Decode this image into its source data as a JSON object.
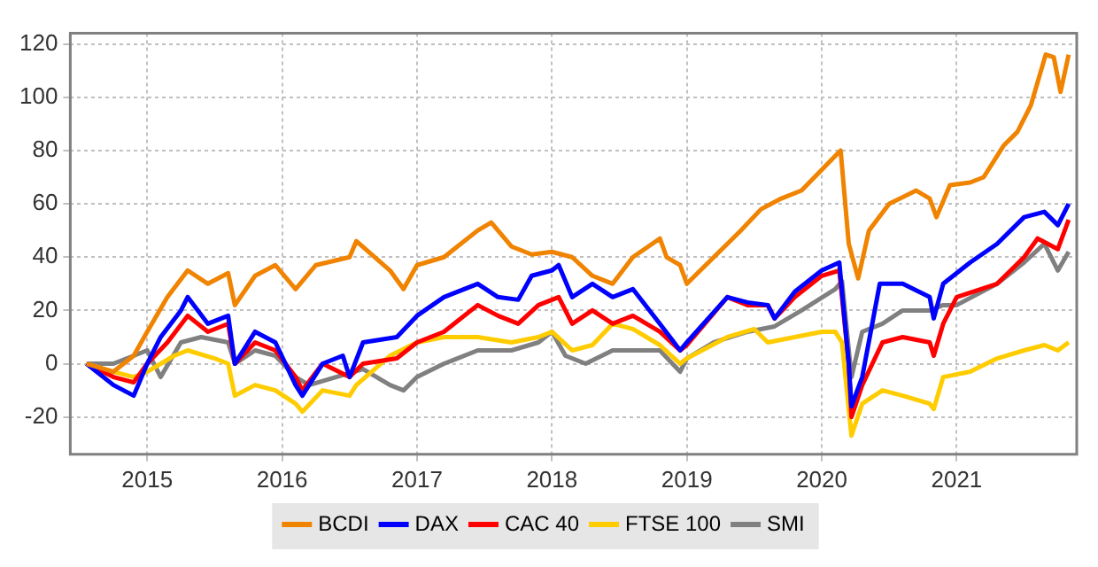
{
  "chart_data": {
    "type": "line",
    "xlim": [
      2014.43,
      2021.89
    ],
    "xticks": [
      2015,
      2016,
      2017,
      2018,
      2019,
      2020,
      2021
    ],
    "ylim": [
      -34,
      124
    ],
    "yticks": [
      -20,
      0,
      20,
      40,
      60,
      80,
      100,
      120
    ],
    "grid": true,
    "legend": "bottom",
    "marker": "none",
    "line_style": "solid",
    "series": [
      {
        "name": "BCDI",
        "color": "#f08300",
        "x": [
          2014.55,
          2014.75,
          2014.9,
          2015.0,
          2015.15,
          2015.3,
          2015.45,
          2015.6,
          2015.65,
          2015.8,
          2015.95,
          2016.1,
          2016.25,
          2016.5,
          2016.55,
          2016.8,
          2016.9,
          2017.0,
          2017.2,
          2017.45,
          2017.55,
          2017.7,
          2017.85,
          2018.0,
          2018.15,
          2018.3,
          2018.45,
          2018.6,
          2018.8,
          2018.85,
          2018.95,
          2019.0,
          2019.2,
          2019.4,
          2019.55,
          2019.7,
          2019.85,
          2020.1,
          2020.14,
          2020.2,
          2020.27,
          2020.35,
          2020.5,
          2020.7,
          2020.8,
          2020.85,
          2020.95,
          2021.1,
          2021.2,
          2021.35,
          2021.45,
          2021.55,
          2021.66,
          2021.72,
          2021.77,
          2021.83
        ],
        "values": [
          0,
          -3,
          3,
          12,
          25,
          35,
          30,
          34,
          22,
          33,
          37,
          28,
          37,
          40,
          46,
          35,
          28,
          37,
          40,
          50,
          53,
          44,
          41,
          42,
          40,
          33,
          30,
          40,
          47,
          40,
          37,
          30,
          40,
          50,
          58,
          62,
          65,
          78,
          80,
          45,
          32,
          50,
          60,
          65,
          62,
          55,
          67,
          68,
          70,
          82,
          87,
          97,
          116,
          115,
          102,
          116
        ]
      },
      {
        "name": "DAX",
        "color": "#0000ff",
        "x": [
          2014.55,
          2014.75,
          2014.9,
          2015.0,
          2015.1,
          2015.25,
          2015.3,
          2015.45,
          2015.6,
          2015.65,
          2015.8,
          2015.95,
          2016.1,
          2016.15,
          2016.3,
          2016.45,
          2016.5,
          2016.6,
          2016.85,
          2017.0,
          2017.2,
          2017.45,
          2017.6,
          2017.75,
          2017.85,
          2018.0,
          2018.05,
          2018.15,
          2018.3,
          2018.45,
          2018.6,
          2018.8,
          2018.95,
          2019.0,
          2019.3,
          2019.45,
          2019.6,
          2019.65,
          2019.8,
          2020.0,
          2020.13,
          2020.2,
          2020.22,
          2020.3,
          2020.43,
          2020.6,
          2020.8,
          2020.83,
          2020.9,
          2021.1,
          2021.3,
          2021.5,
          2021.65,
          2021.75,
          2021.83
        ],
        "values": [
          0,
          -8,
          -12,
          0,
          10,
          20,
          25,
          15,
          18,
          0,
          12,
          8,
          -8,
          -12,
          0,
          3,
          -5,
          8,
          10,
          18,
          25,
          30,
          25,
          24,
          33,
          35,
          37,
          25,
          30,
          25,
          28,
          15,
          5,
          8,
          25,
          23,
          22,
          17,
          27,
          35,
          38,
          0,
          -16,
          -5,
          30,
          30,
          25,
          17,
          30,
          38,
          45,
          55,
          57,
          52,
          60
        ]
      },
      {
        "name": "CAC 40",
        "color": "#ff0000",
        "x": [
          2014.55,
          2014.75,
          2014.9,
          2015.0,
          2015.15,
          2015.3,
          2015.45,
          2015.6,
          2015.65,
          2015.8,
          2015.95,
          2016.1,
          2016.15,
          2016.3,
          2016.5,
          2016.6,
          2016.85,
          2017.0,
          2017.2,
          2017.45,
          2017.6,
          2017.75,
          2017.9,
          2018.05,
          2018.15,
          2018.3,
          2018.45,
          2018.6,
          2018.8,
          2018.95,
          2019.0,
          2019.3,
          2019.45,
          2019.6,
          2019.65,
          2019.8,
          2020.0,
          2020.13,
          2020.2,
          2020.22,
          2020.3,
          2020.45,
          2020.6,
          2020.8,
          2020.83,
          2020.9,
          2021.0,
          2021.3,
          2021.5,
          2021.6,
          2021.75,
          2021.83
        ],
        "values": [
          0,
          -5,
          -7,
          0,
          8,
          18,
          12,
          15,
          0,
          8,
          5,
          -5,
          -10,
          0,
          -5,
          0,
          2,
          8,
          12,
          22,
          18,
          15,
          22,
          25,
          15,
          20,
          15,
          18,
          12,
          5,
          7,
          25,
          22,
          22,
          17,
          25,
          33,
          35,
          0,
          -20,
          -8,
          8,
          10,
          8,
          3,
          15,
          25,
          30,
          40,
          47,
          43,
          54
        ]
      },
      {
        "name": "FTSE 100",
        "color": "#ffcc00",
        "x": [
          2014.55,
          2014.75,
          2014.9,
          2015.0,
          2015.2,
          2015.3,
          2015.5,
          2015.6,
          2015.65,
          2015.8,
          2015.95,
          2016.1,
          2016.15,
          2016.3,
          2016.5,
          2016.55,
          2016.8,
          2017.0,
          2017.2,
          2017.45,
          2017.7,
          2017.9,
          2018.0,
          2018.15,
          2018.3,
          2018.45,
          2018.6,
          2018.8,
          2018.95,
          2019.0,
          2019.3,
          2019.5,
          2019.6,
          2019.8,
          2020.0,
          2020.1,
          2020.15,
          2020.22,
          2020.3,
          2020.45,
          2020.6,
          2020.8,
          2020.83,
          2020.9,
          2021.1,
          2021.3,
          2021.5,
          2021.65,
          2021.75,
          2021.83
        ],
        "values": [
          0,
          -3,
          -5,
          -3,
          3,
          5,
          2,
          0,
          -12,
          -8,
          -10,
          -15,
          -18,
          -10,
          -12,
          -8,
          3,
          8,
          10,
          10,
          8,
          10,
          12,
          5,
          7,
          15,
          13,
          7,
          0,
          2,
          10,
          13,
          8,
          10,
          12,
          12,
          8,
          -27,
          -15,
          -10,
          -12,
          -15,
          -17,
          -5,
          -3,
          2,
          5,
          7,
          5,
          8
        ]
      },
      {
        "name": "SMI",
        "color": "#808080",
        "x": [
          2014.55,
          2014.75,
          2014.9,
          2015.0,
          2015.1,
          2015.25,
          2015.4,
          2015.6,
          2015.65,
          2015.8,
          2015.95,
          2016.1,
          2016.2,
          2016.4,
          2016.6,
          2016.8,
          2016.9,
          2017.0,
          2017.2,
          2017.45,
          2017.7,
          2017.9,
          2018.0,
          2018.1,
          2018.25,
          2018.45,
          2018.6,
          2018.8,
          2018.95,
          2019.0,
          2019.2,
          2019.45,
          2019.65,
          2019.85,
          2020.1,
          2020.15,
          2020.22,
          2020.3,
          2020.45,
          2020.6,
          2020.8,
          2020.9,
          2021.0,
          2021.3,
          2021.5,
          2021.65,
          2021.75,
          2021.83
        ],
        "values": [
          0,
          0,
          3,
          5,
          -5,
          8,
          10,
          8,
          0,
          5,
          3,
          -5,
          -8,
          -5,
          -2,
          -8,
          -10,
          -5,
          0,
          5,
          5,
          8,
          12,
          3,
          0,
          5,
          5,
          5,
          -3,
          2,
          8,
          12,
          14,
          20,
          28,
          31,
          -5,
          12,
          15,
          20,
          20,
          22,
          22,
          30,
          38,
          45,
          35,
          42
        ]
      }
    ]
  }
}
